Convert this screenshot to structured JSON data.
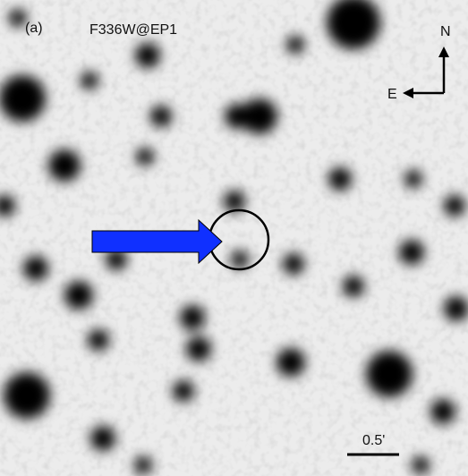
{
  "panel": {
    "label": "(a)",
    "filter": "F336W@EP1"
  },
  "compass": {
    "north": "N",
    "east": "E"
  },
  "scale_bar": {
    "label": "0.5'"
  }
}
